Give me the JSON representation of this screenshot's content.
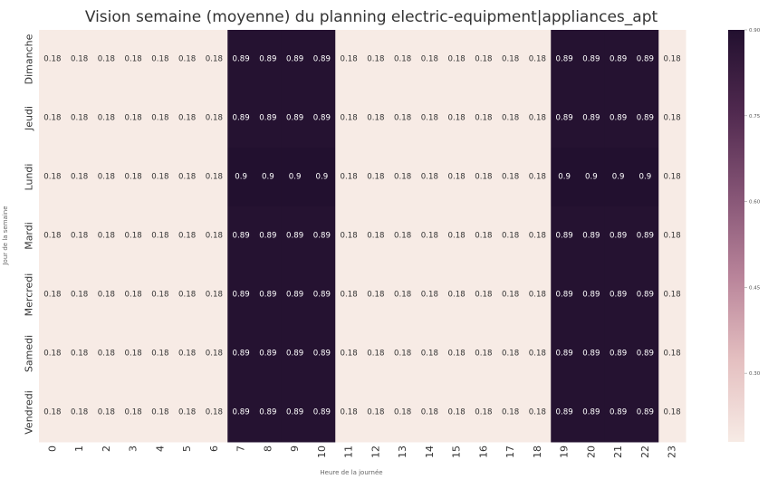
{
  "chart_data": {
    "type": "heatmap",
    "title": "Vision semaine (moyenne) du planning electric-equipment|appliances_apt",
    "xlabel": "Heure de la journée",
    "ylabel": "Jour de la semaine",
    "x": [
      "0",
      "1",
      "2",
      "3",
      "4",
      "5",
      "6",
      "7",
      "8",
      "9",
      "10",
      "11",
      "12",
      "13",
      "14",
      "15",
      "16",
      "17",
      "18",
      "19",
      "20",
      "21",
      "22",
      "23"
    ],
    "y": [
      "Dimanche",
      "Jeudi",
      "Lundi",
      "Mardi",
      "Mercredi",
      "Samedi",
      "Vendredi"
    ],
    "values": [
      [
        0.18,
        0.18,
        0.18,
        0.18,
        0.18,
        0.18,
        0.18,
        0.89,
        0.89,
        0.89,
        0.89,
        0.18,
        0.18,
        0.18,
        0.18,
        0.18,
        0.18,
        0.18,
        0.18,
        0.89,
        0.89,
        0.89,
        0.89,
        0.18
      ],
      [
        0.18,
        0.18,
        0.18,
        0.18,
        0.18,
        0.18,
        0.18,
        0.89,
        0.89,
        0.89,
        0.89,
        0.18,
        0.18,
        0.18,
        0.18,
        0.18,
        0.18,
        0.18,
        0.18,
        0.89,
        0.89,
        0.89,
        0.89,
        0.18
      ],
      [
        0.18,
        0.18,
        0.18,
        0.18,
        0.18,
        0.18,
        0.18,
        0.9,
        0.9,
        0.9,
        0.9,
        0.18,
        0.18,
        0.18,
        0.18,
        0.18,
        0.18,
        0.18,
        0.18,
        0.9,
        0.9,
        0.9,
        0.9,
        0.18
      ],
      [
        0.18,
        0.18,
        0.18,
        0.18,
        0.18,
        0.18,
        0.18,
        0.89,
        0.89,
        0.89,
        0.89,
        0.18,
        0.18,
        0.18,
        0.18,
        0.18,
        0.18,
        0.18,
        0.18,
        0.89,
        0.89,
        0.89,
        0.89,
        0.18
      ],
      [
        0.18,
        0.18,
        0.18,
        0.18,
        0.18,
        0.18,
        0.18,
        0.89,
        0.89,
        0.89,
        0.89,
        0.18,
        0.18,
        0.18,
        0.18,
        0.18,
        0.18,
        0.18,
        0.18,
        0.89,
        0.89,
        0.89,
        0.89,
        0.18
      ],
      [
        0.18,
        0.18,
        0.18,
        0.18,
        0.18,
        0.18,
        0.18,
        0.89,
        0.89,
        0.89,
        0.89,
        0.18,
        0.18,
        0.18,
        0.18,
        0.18,
        0.18,
        0.18,
        0.18,
        0.89,
        0.89,
        0.89,
        0.89,
        0.18
      ],
      [
        0.18,
        0.18,
        0.18,
        0.18,
        0.18,
        0.18,
        0.18,
        0.89,
        0.89,
        0.89,
        0.89,
        0.18,
        0.18,
        0.18,
        0.18,
        0.18,
        0.18,
        0.18,
        0.18,
        0.89,
        0.89,
        0.89,
        0.89,
        0.18
      ]
    ],
    "colorbar": {
      "range": [
        0.18,
        0.9
      ],
      "ticks": [
        0.3,
        0.45,
        0.6,
        0.75,
        0.9
      ],
      "tick_labels": [
        "0.30",
        "0.45",
        "0.60",
        "0.75",
        "0.90"
      ]
    },
    "colors": {
      "low": "#f7ebe5",
      "high": "#22102f",
      "low_text": "#333333",
      "high_text": "#ffffff"
    }
  }
}
